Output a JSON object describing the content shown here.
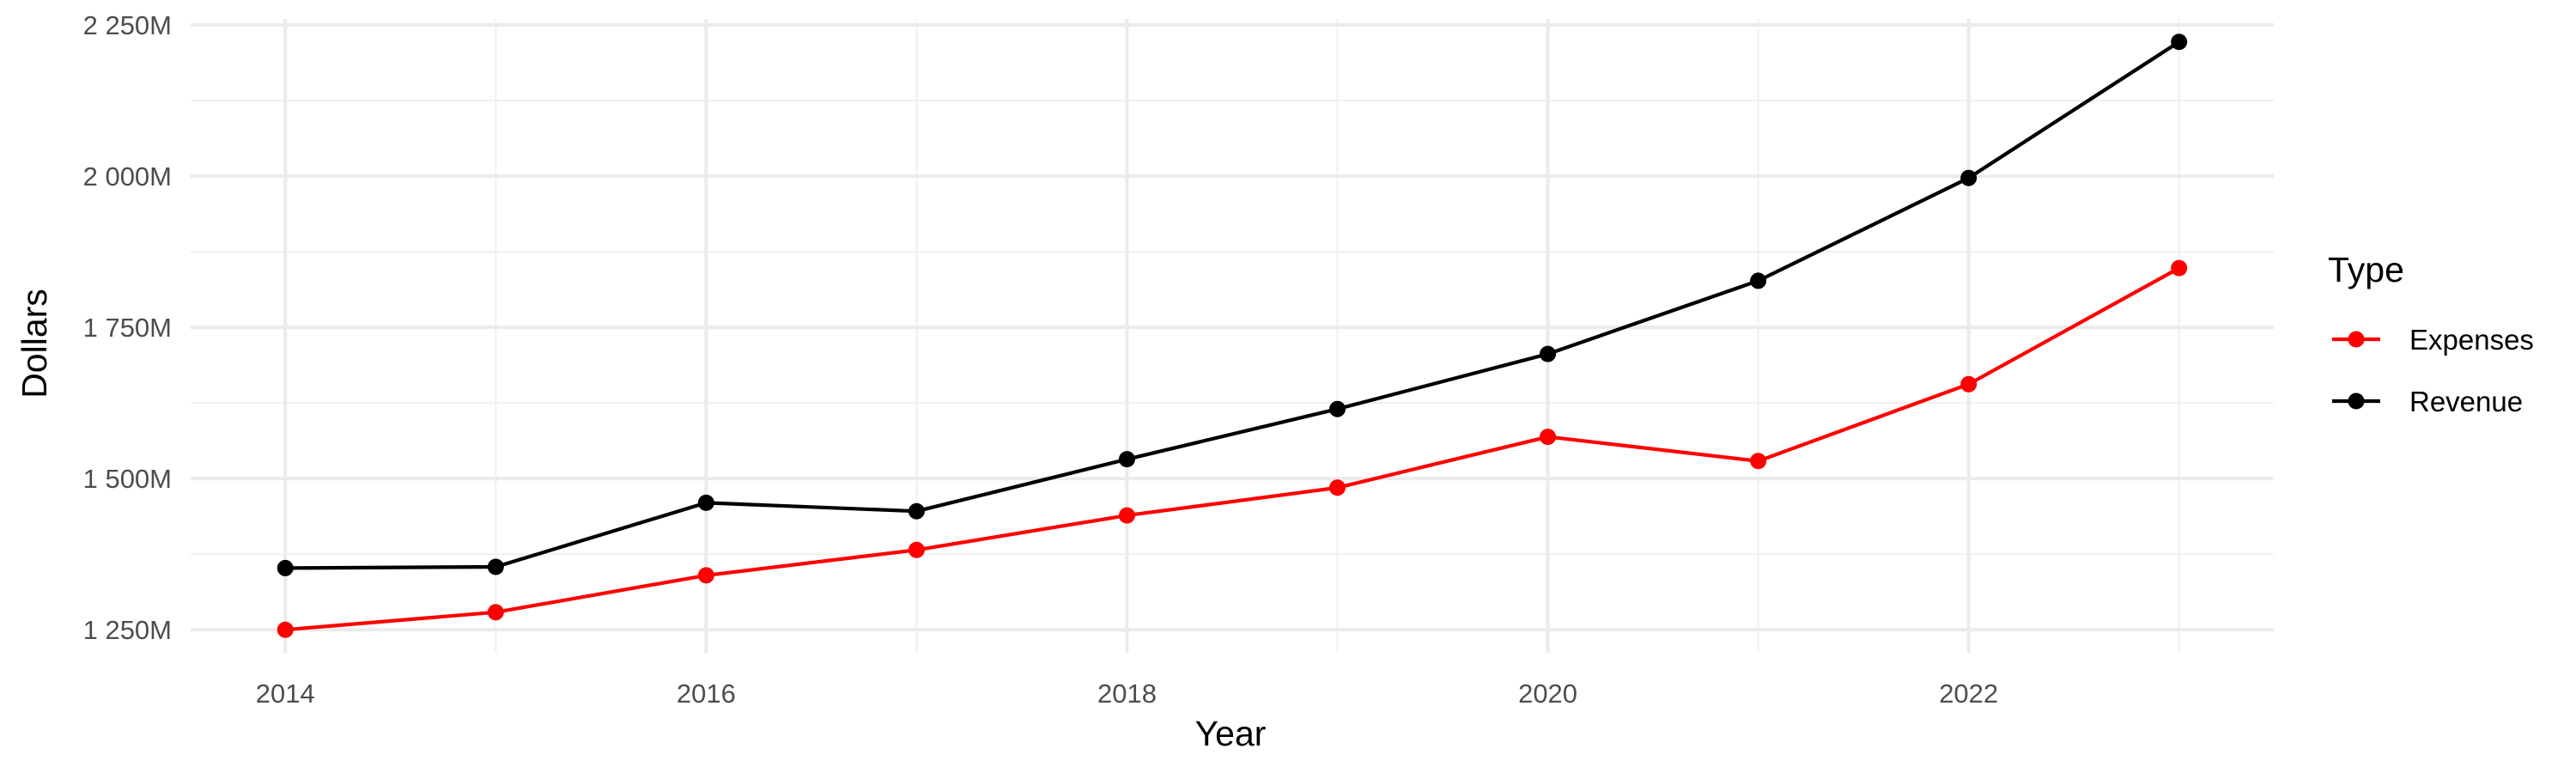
{
  "chart_data": {
    "type": "line",
    "xlabel": "Year",
    "ylabel": "Dollars",
    "x": [
      2014,
      2015,
      2016,
      2017,
      2018,
      2019,
      2020,
      2021,
      2022,
      2023
    ],
    "x_ticks": [
      2014,
      2016,
      2018,
      2020,
      2022
    ],
    "x_tick_labels": [
      "2014",
      "2016",
      "2018",
      "2020",
      "2022"
    ],
    "xlim": [
      2013.55,
      2023.45
    ],
    "y_ticks": [
      1250,
      1500,
      1750,
      2000,
      2250
    ],
    "y_tick_labels": [
      "1 250M",
      "1 500M",
      "1 750M",
      "2 000M",
      "2 250M"
    ],
    "ylim": [
      1212,
      2260
    ],
    "y_unit": "millions of dollars",
    "grid": true,
    "legend": {
      "title": "Type",
      "position": "right"
    },
    "series": [
      {
        "name": "Expenses",
        "color": "#ff0000",
        "values": [
          1250,
          1279,
          1340,
          1382,
          1439,
          1485,
          1569,
          1529,
          1656,
          1848
        ]
      },
      {
        "name": "Revenue",
        "color": "#000000",
        "values": [
          1352,
          1354,
          1460,
          1446,
          1532,
          1615,
          1706,
          1827,
          1997,
          2222
        ]
      }
    ]
  }
}
